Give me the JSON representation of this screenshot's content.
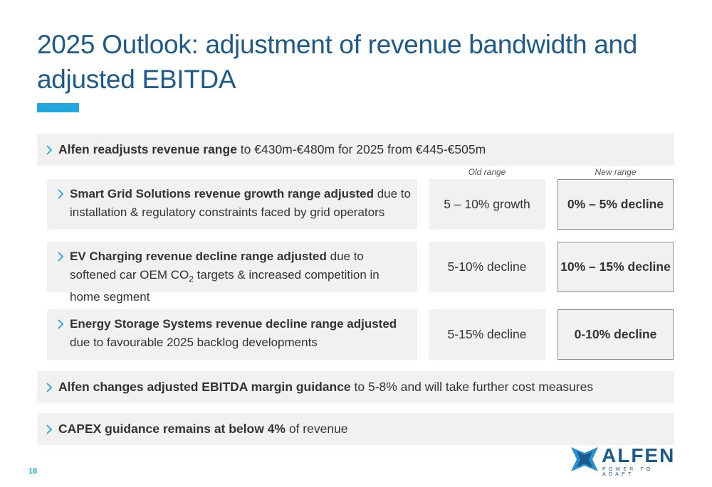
{
  "title": "2025 Outlook: adjustment of revenue bandwidth and adjusted EBITDA",
  "page_number": "18",
  "bullet1": {
    "bold": "Alfen readjusts revenue range",
    "rest": " to €430m-€480m for 2025 from €445-€505m"
  },
  "columns": {
    "old": "Old range",
    "new": "New range"
  },
  "segments": [
    {
      "bold": "Smart Grid Solutions revenue growth range adjusted",
      "rest": " due to installation & regulatory constraints faced by grid operators",
      "old": "5 – 10% growth",
      "new": "0% – 5% decline"
    },
    {
      "bold": "EV Charging revenue decline range adjusted",
      "rest_pre": " due to softened car OEM CO",
      "rest_sub": "2",
      "rest_post": " targets & increased competition in home segment",
      "old": "5-10% decline",
      "new": "10% – 15% decline"
    },
    {
      "bold": "Energy Storage Systems revenue decline range adjusted",
      "rest": " due to favourable 2025 backlog developments",
      "old": "5-15% decline",
      "new": "0-10% decline"
    }
  ],
  "bullet2": {
    "bold": "Alfen changes adjusted EBITDA margin guidance",
    "rest": " to 5-8% and will take further cost measures"
  },
  "bullet3": {
    "bold": "CAPEX guidance remains at below 4%",
    "rest": " of revenue"
  },
  "logo": {
    "word": "ALFEN",
    "tagline": "POWER TO ADAPT"
  },
  "colors": {
    "title": "#1d5a8c",
    "accent": "#22a6dd",
    "panel": "#f1f1f1"
  },
  "icons": {
    "bullet": "chevron-right-icon",
    "logo": "alfen-star-logo"
  }
}
